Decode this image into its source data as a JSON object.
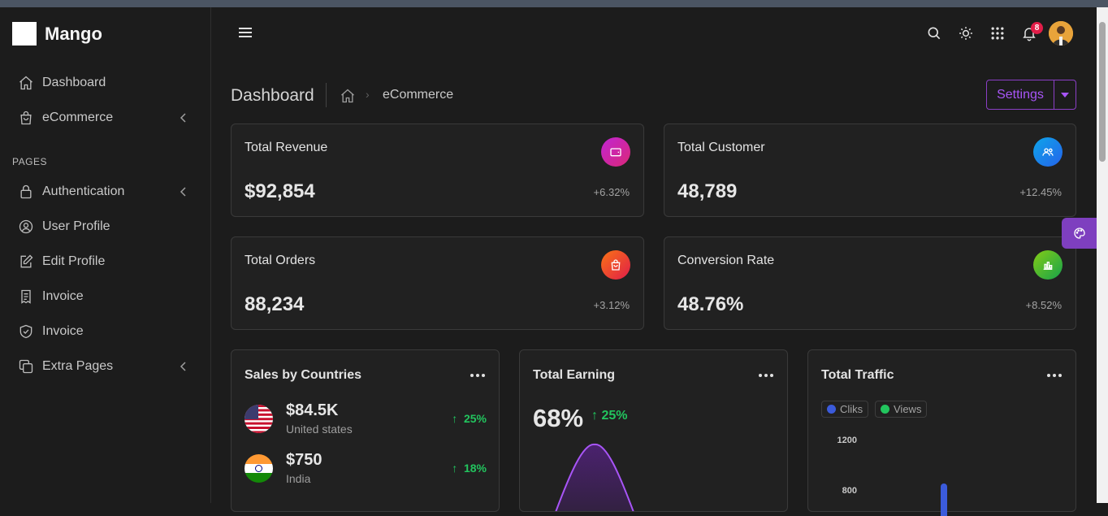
{
  "brand": {
    "name": "Mango"
  },
  "sidebar": {
    "items": [
      {
        "label": "Dashboard",
        "icon": "home-icon"
      },
      {
        "label": "eCommerce",
        "icon": "shopping-bag-icon",
        "chevron": true
      }
    ],
    "section_label": "PAGES",
    "pages": [
      {
        "label": "Authentication",
        "icon": "lock-icon",
        "chevron": true
      },
      {
        "label": "User Profile",
        "icon": "user-circle-icon"
      },
      {
        "label": "Edit Profile",
        "icon": "edit-icon"
      },
      {
        "label": "Invoice",
        "icon": "receipt-icon"
      },
      {
        "label": "Invoice",
        "icon": "shield-check-icon"
      },
      {
        "label": "Extra Pages",
        "icon": "copy-icon",
        "chevron": true
      }
    ]
  },
  "topbar": {
    "icons": [
      "menu-icon",
      "search-icon",
      "sun-icon",
      "apps-grid-icon",
      "bell-icon"
    ],
    "notification_count": "8"
  },
  "breadcrumb": {
    "title": "Dashboard",
    "current": "eCommerce"
  },
  "settings": {
    "label": "Settings"
  },
  "stats": [
    {
      "title": "Total Revenue",
      "value": "$92,854",
      "delta": "+6.32%",
      "icon": "wallet-icon"
    },
    {
      "title": "Total Customer",
      "value": "48,789",
      "delta": "+12.45%",
      "icon": "users-icon"
    },
    {
      "title": "Total Orders",
      "value": "88,234",
      "delta": "+3.12%",
      "icon": "shopping-bag-icon"
    },
    {
      "title": "Conversion Rate",
      "value": "48.76%",
      "delta": "+8.52%",
      "icon": "bar-chart-icon"
    }
  ],
  "sales": {
    "title": "Sales by Countries",
    "countries": [
      {
        "amount": "$84.5K",
        "name": "United states",
        "pct": "25%"
      },
      {
        "amount": "$750",
        "name": "India",
        "pct": "18%"
      }
    ]
  },
  "earning": {
    "title": "Total Earning",
    "value": "68%",
    "pct": "25%"
  },
  "traffic": {
    "title": "Total Traffic",
    "legend": [
      "Cliks",
      "Views"
    ],
    "yticks": [
      "1200",
      "800"
    ]
  },
  "colors": {
    "accent": "#a855f7",
    "success": "#22c55e",
    "clicks": "#3b5bdb",
    "views": "#22c55e"
  }
}
